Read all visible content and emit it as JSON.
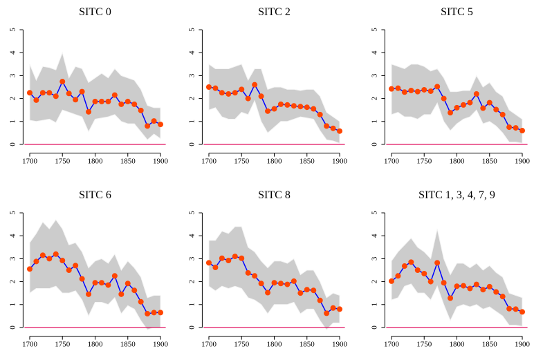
{
  "chart_data": [
    {
      "type": "line",
      "title": "SITC 0",
      "x": [
        1700,
        1710,
        1720,
        1730,
        1740,
        1750,
        1760,
        1770,
        1780,
        1790,
        1800,
        1810,
        1820,
        1830,
        1840,
        1850,
        1860,
        1870,
        1880,
        1890,
        1900
      ],
      "series": [
        {
          "color": "#0000ff",
          "marker_color": "#ff4500",
          "values": [
            2.25,
            1.93,
            2.25,
            2.25,
            2.1,
            2.74,
            2.22,
            1.95,
            2.3,
            1.42,
            1.87,
            1.87,
            1.87,
            2.15,
            1.75,
            1.87,
            1.75,
            1.48,
            0.8,
            1.02,
            0.87
          ],
          "upper": [
            3.5,
            2.8,
            3.4,
            3.35,
            3.25,
            4.0,
            2.9,
            3.4,
            3.3,
            2.7,
            2.9,
            3.1,
            2.9,
            3.3,
            3.0,
            2.9,
            2.8,
            2.4,
            1.7,
            1.6,
            1.6
          ],
          "lower": [
            1.05,
            1.0,
            1.05,
            1.1,
            0.95,
            1.5,
            1.4,
            1.3,
            1.2,
            0.55,
            1.1,
            1.15,
            1.2,
            1.3,
            1.0,
            0.9,
            0.9,
            0.55,
            0.2,
            0.45,
            0.25
          ]
        }
      ],
      "band_color": "#cccccc",
      "hline": 0,
      "hline_color": "#e0115f",
      "xlim": [
        1692,
        1908
      ],
      "xticks": [
        1700,
        1750,
        1800,
        1850,
        1900
      ],
      "ylim": [
        -0.2,
        5.2
      ],
      "yticks": [
        0,
        1,
        2,
        3,
        4,
        5
      ]
    },
    {
      "type": "line",
      "title": "SITC 2",
      "x": [
        1700,
        1710,
        1720,
        1730,
        1740,
        1750,
        1760,
        1770,
        1780,
        1790,
        1800,
        1810,
        1820,
        1830,
        1840,
        1850,
        1860,
        1870,
        1880,
        1890,
        1900
      ],
      "series": [
        {
          "color": "#0000ff",
          "marker_color": "#ff4500",
          "values": [
            2.5,
            2.45,
            2.25,
            2.2,
            2.25,
            2.4,
            2.0,
            2.6,
            2.1,
            1.45,
            1.55,
            1.75,
            1.72,
            1.68,
            1.65,
            1.62,
            1.55,
            1.3,
            0.8,
            0.7,
            0.58
          ],
          "upper": [
            3.5,
            3.3,
            3.3,
            3.3,
            3.4,
            3.5,
            2.8,
            3.3,
            3.3,
            2.4,
            2.5,
            2.5,
            2.4,
            2.4,
            2.35,
            2.4,
            2.4,
            2.1,
            1.4,
            1.2,
            1.0
          ],
          "lower": [
            1.5,
            1.6,
            1.2,
            1.1,
            1.1,
            1.4,
            1.3,
            1.9,
            1.0,
            0.5,
            0.75,
            1.0,
            1.0,
            1.1,
            1.2,
            1.15,
            1.1,
            0.6,
            0.2,
            0.15,
            0.05
          ]
        }
      ],
      "band_color": "#cccccc",
      "hline": 0,
      "hline_color": "#e0115f",
      "xlim": [
        1692,
        1908
      ],
      "xticks": [
        1700,
        1750,
        1800,
        1850,
        1900
      ],
      "ylim": [
        -0.2,
        5.2
      ],
      "yticks": [
        0,
        1,
        2,
        3,
        4,
        5
      ]
    },
    {
      "type": "line",
      "title": "SITC 5",
      "x": [
        1700,
        1710,
        1720,
        1730,
        1740,
        1750,
        1760,
        1770,
        1780,
        1790,
        1800,
        1810,
        1820,
        1830,
        1840,
        1850,
        1860,
        1870,
        1880,
        1890,
        1900
      ],
      "series": [
        {
          "color": "#0000ff",
          "marker_color": "#ff4500",
          "values": [
            2.42,
            2.45,
            2.28,
            2.35,
            2.3,
            2.38,
            2.32,
            2.52,
            2.0,
            1.38,
            1.6,
            1.72,
            1.82,
            2.2,
            1.58,
            1.82,
            1.52,
            1.3,
            0.75,
            0.72,
            0.6
          ],
          "upper": [
            3.5,
            3.4,
            3.3,
            3.5,
            3.5,
            3.4,
            3.2,
            3.3,
            2.9,
            2.3,
            2.3,
            2.35,
            2.35,
            3.0,
            2.5,
            2.7,
            2.3,
            2.1,
            1.5,
            1.3,
            1.1
          ],
          "lower": [
            1.3,
            1.4,
            1.2,
            1.2,
            1.1,
            1.3,
            1.3,
            1.8,
            1.0,
            0.6,
            0.9,
            1.1,
            1.2,
            1.5,
            0.9,
            1.0,
            0.8,
            0.5,
            0.1,
            0.1,
            0.05
          ]
        }
      ],
      "band_color": "#cccccc",
      "hline": 0,
      "hline_color": "#e0115f",
      "xlim": [
        1692,
        1908
      ],
      "xticks": [
        1700,
        1750,
        1800,
        1850,
        1900
      ],
      "ylim": [
        -0.2,
        5.2
      ],
      "yticks": [
        0,
        1,
        2,
        3,
        4,
        5
      ]
    },
    {
      "type": "line",
      "title": "SITC 6",
      "x": [
        1700,
        1710,
        1720,
        1730,
        1740,
        1750,
        1760,
        1770,
        1780,
        1790,
        1800,
        1810,
        1820,
        1830,
        1840,
        1850,
        1860,
        1870,
        1880,
        1890,
        1900
      ],
      "series": [
        {
          "color": "#0000ff",
          "marker_color": "#ff4500",
          "values": [
            2.55,
            2.88,
            3.15,
            3.0,
            3.2,
            2.92,
            2.5,
            2.7,
            2.12,
            1.45,
            1.95,
            1.95,
            1.85,
            2.25,
            1.45,
            1.92,
            1.62,
            1.12,
            0.6,
            0.65,
            0.65
          ],
          "upper": [
            3.7,
            4.1,
            4.6,
            4.3,
            4.7,
            4.3,
            3.6,
            3.7,
            3.3,
            2.6,
            2.9,
            3.0,
            2.8,
            3.2,
            2.5,
            2.9,
            2.6,
            2.2,
            1.3,
            1.4,
            1.4
          ],
          "lower": [
            1.5,
            1.7,
            1.7,
            1.7,
            1.8,
            1.5,
            1.5,
            1.6,
            1.2,
            0.5,
            1.1,
            1.1,
            1.0,
            1.3,
            0.6,
            0.95,
            0.8,
            0.3,
            -0.1,
            0.0,
            0.0
          ]
        }
      ],
      "band_color": "#cccccc",
      "hline": 0,
      "hline_color": "#e0115f",
      "xlim": [
        1692,
        1908
      ],
      "xticks": [
        1700,
        1750,
        1800,
        1850,
        1900
      ],
      "ylim": [
        -0.2,
        5.2
      ],
      "yticks": [
        0,
        1,
        2,
        3,
        4,
        5
      ]
    },
    {
      "type": "line",
      "title": "SITC 8",
      "x": [
        1700,
        1710,
        1720,
        1730,
        1740,
        1750,
        1760,
        1770,
        1780,
        1790,
        1800,
        1810,
        1820,
        1830,
        1840,
        1850,
        1860,
        1870,
        1880,
        1890,
        1900
      ],
      "series": [
        {
          "color": "#0000ff",
          "marker_color": "#ff4500",
          "values": [
            2.82,
            2.62,
            3.02,
            2.92,
            3.1,
            3.02,
            2.38,
            2.25,
            1.92,
            1.52,
            1.95,
            1.92,
            1.88,
            2.02,
            1.5,
            1.65,
            1.62,
            1.18,
            0.62,
            0.85,
            0.8
          ],
          "upper": [
            3.8,
            3.8,
            4.2,
            4.1,
            4.4,
            4.4,
            3.5,
            3.3,
            2.9,
            2.6,
            2.9,
            2.9,
            2.8,
            3.0,
            2.3,
            2.5,
            2.5,
            2.0,
            1.3,
            1.5,
            1.4
          ],
          "lower": [
            1.8,
            1.6,
            1.8,
            1.7,
            1.8,
            1.7,
            1.3,
            1.2,
            1.0,
            0.6,
            1.0,
            1.0,
            1.0,
            1.1,
            0.6,
            0.8,
            0.8,
            0.3,
            -0.1,
            0.2,
            0.2
          ]
        }
      ],
      "band_color": "#cccccc",
      "hline": 0,
      "hline_color": "#e0115f",
      "xlim": [
        1692,
        1908
      ],
      "xticks": [
        1700,
        1750,
        1800,
        1850,
        1900
      ],
      "ylim": [
        -0.2,
        5.2
      ],
      "yticks": [
        0,
        1,
        2,
        3,
        4,
        5
      ]
    },
    {
      "type": "line",
      "title": "SITC 1, 3, 4, 7, 9",
      "x": [
        1700,
        1710,
        1720,
        1730,
        1740,
        1750,
        1760,
        1770,
        1780,
        1790,
        1800,
        1810,
        1820,
        1830,
        1840,
        1850,
        1860,
        1870,
        1880,
        1890,
        1900
      ],
      "series": [
        {
          "color": "#0000ff",
          "marker_color": "#ff4500",
          "values": [
            2.02,
            2.25,
            2.68,
            2.85,
            2.5,
            2.35,
            2.0,
            2.82,
            1.95,
            1.28,
            1.8,
            1.82,
            1.7,
            1.88,
            1.65,
            1.78,
            1.55,
            1.35,
            0.82,
            0.8,
            0.68
          ],
          "upper": [
            2.9,
            3.3,
            3.6,
            3.9,
            3.5,
            3.3,
            3.0,
            4.3,
            3.0,
            2.3,
            2.8,
            2.8,
            2.6,
            2.8,
            2.5,
            2.7,
            2.4,
            2.2,
            1.5,
            1.4,
            1.3
          ],
          "lower": [
            1.2,
            1.3,
            1.8,
            1.9,
            1.5,
            1.5,
            1.2,
            1.8,
            1.0,
            0.3,
            0.9,
            1.0,
            0.9,
            1.0,
            0.8,
            0.9,
            0.7,
            0.5,
            0.1,
            0.1,
            0.05
          ]
        }
      ],
      "band_color": "#cccccc",
      "hline": 0,
      "hline_color": "#e0115f",
      "xlim": [
        1692,
        1908
      ],
      "xticks": [
        1700,
        1750,
        1800,
        1850,
        1900
      ],
      "ylim": [
        -0.2,
        5.2
      ],
      "yticks": [
        0,
        1,
        2,
        3,
        4,
        5
      ]
    }
  ]
}
